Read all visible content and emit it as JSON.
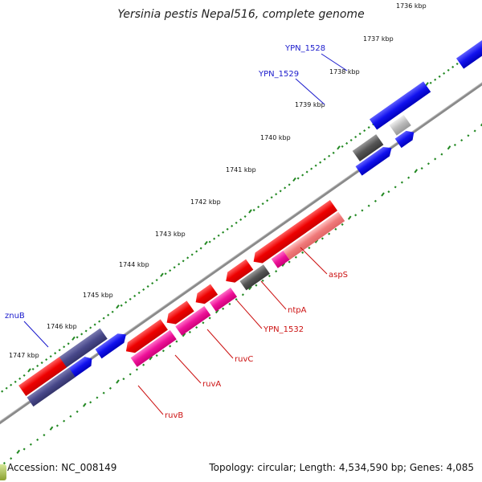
{
  "title": "Yersinia pestis Nepal516, complete genome",
  "accession": "Accession: NC_008149",
  "summary": "Topology: circular; Length: 4,534,590 bp; Genes: 4,085",
  "colors": {
    "forward_cds": "#1a1aee",
    "reverse_cds": "#ee1111",
    "rna": "#ee1199",
    "pseudo": "#555566",
    "dark_cds": "#44447a",
    "backbone": "#888888",
    "ticks": "#228822",
    "forward_label": "#1a1acc",
    "reverse_label": "#cc1111"
  },
  "kbp_ticks": [
    {
      "label": "1736 kbp"
    },
    {
      "label": "1737 kbp"
    },
    {
      "label": "1738 kbp"
    },
    {
      "label": "1739 kbp"
    },
    {
      "label": "1740 kbp"
    },
    {
      "label": "1741 kbp"
    },
    {
      "label": "1742 kbp"
    },
    {
      "label": "1743 kbp"
    },
    {
      "label": "1744 kbp"
    },
    {
      "label": "1745 kbp"
    },
    {
      "label": "1746 kbp"
    },
    {
      "label": "1747 kbp"
    }
  ],
  "forward_genes": [
    {
      "label": "YPN_1528"
    },
    {
      "label": "YPN_1529"
    },
    {
      "label": "znuB"
    }
  ],
  "reverse_genes": [
    {
      "label": "aspS"
    },
    {
      "label": "ntpA"
    },
    {
      "label": "YPN_1532"
    },
    {
      "label": "ruvC"
    },
    {
      "label": "ruvA"
    },
    {
      "label": "ruvB"
    }
  ]
}
